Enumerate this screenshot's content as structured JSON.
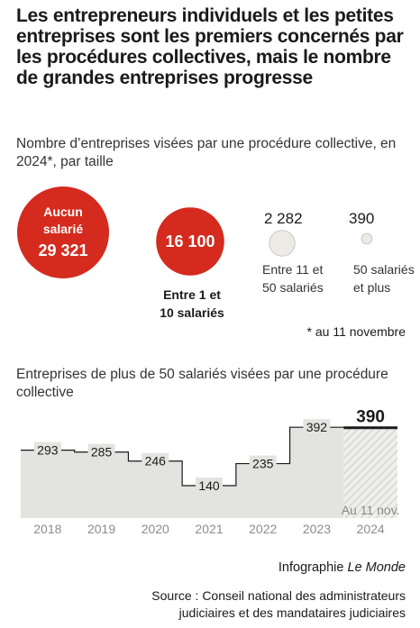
{
  "title": "Les entrepreneurs individuels et les petites entreprises sont les premiers concernés par les procédures collectives, mais le nombre de grandes entreprises progresse",
  "subtitle": "Nombre d’entreprises visées par une procédure collective, en 2024*, par taille",
  "footnote": "* au 11 novembre",
  "subtitle2": "Entreprises de plus de 50 salariés visées par une procédure collective",
  "credit_prefix": "Infographie ",
  "credit_brand": "Le Monde",
  "source": "Source : Conseil national des administrateurs judiciaires et des mandataires judiciaires",
  "colors": {
    "red": "#d42b1e",
    "grey": "#e3e3e0",
    "bubble_grey": "#ecebe6"
  },
  "chart_data": [
    {
      "type": "bubble",
      "title": "",
      "items": [
        {
          "label_lines": [
            "Aucun",
            "salarié"
          ],
          "value_text": "29 321",
          "value": 29321,
          "color": "#d42b1e"
        },
        {
          "label_lines": [
            "Entre 1 et",
            "10 salariés"
          ],
          "value_text": "16 100",
          "value": 16100,
          "color": "#d42b1e"
        },
        {
          "label_lines": [
            "Entre 11 et",
            "50 salariés"
          ],
          "value_text": "2 282",
          "value": 2282,
          "color": "#ecebe6"
        },
        {
          "label_lines": [
            "50 salariés",
            "et plus"
          ],
          "value_text": "390",
          "value": 390,
          "color": "#ecebe6"
        }
      ]
    },
    {
      "type": "step-area",
      "categories": [
        "2018",
        "2019",
        "2020",
        "2021",
        "2022",
        "2023",
        "2024"
      ],
      "values": [
        293,
        285,
        246,
        140,
        235,
        392,
        390
      ],
      "value_labels": [
        "293",
        "285",
        "246",
        "140",
        "235",
        "392",
        "390"
      ],
      "last_category_label": [
        "Au 11 nov.",
        "2024"
      ],
      "highlight_last": true,
      "ylim": [
        0,
        420
      ]
    }
  ]
}
